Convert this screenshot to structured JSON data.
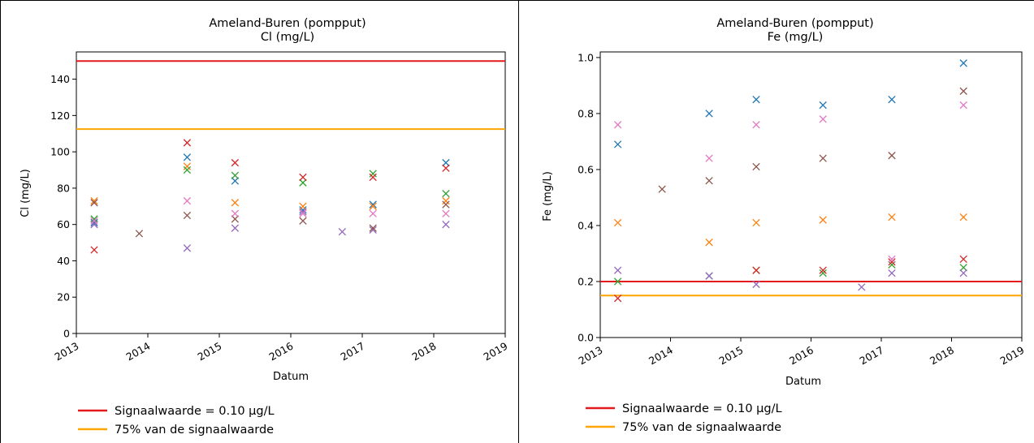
{
  "chart_data": [
    {
      "type": "scatter",
      "title": "Ameland-Buren (pompput)",
      "subtitle": "Cl (mg/L)",
      "xlabel": "Datum",
      "ylabel": "Cl (mg/L)",
      "xlim": [
        2013,
        2019
      ],
      "ylim": [
        0,
        155
      ],
      "xticks": [
        "2013",
        "2014",
        "2015",
        "2016",
        "2017",
        "2018",
        "2019"
      ],
      "yticks": [
        0,
        20,
        40,
        60,
        80,
        100,
        120,
        140
      ],
      "grid": false,
      "legend_position": "below plot",
      "hlines": [
        {
          "name": "Signaalwaarde = 0.10 µg/L",
          "value": 150,
          "color": "#e31a1c"
        },
        {
          "name": "75% van de signaalwaarde",
          "value": 112.5,
          "color": "#ffa500"
        }
      ],
      "series": [
        {
          "color": "#1f77b4",
          "points": [
            [
              2013.25,
              61
            ],
            [
              2014.55,
              97
            ],
            [
              2015.22,
              84
            ],
            [
              2016.17,
              68
            ],
            [
              2017.15,
              71
            ],
            [
              2018.17,
              94
            ]
          ]
        },
        {
          "color": "#ff7f0e",
          "points": [
            [
              2013.25,
              73
            ],
            [
              2014.55,
              92
            ],
            [
              2015.22,
              72
            ],
            [
              2016.17,
              70
            ],
            [
              2017.15,
              70
            ],
            [
              2018.17,
              73
            ]
          ]
        },
        {
          "color": "#2ca02c",
          "points": [
            [
              2013.25,
              63
            ],
            [
              2014.55,
              90
            ],
            [
              2015.22,
              87
            ],
            [
              2016.17,
              83
            ],
            [
              2017.15,
              88
            ],
            [
              2018.17,
              77
            ]
          ]
        },
        {
          "color": "#d62728",
          "points": [
            [
              2013.25,
              46
            ],
            [
              2014.55,
              105
            ],
            [
              2015.22,
              94
            ],
            [
              2016.17,
              86
            ],
            [
              2017.15,
              86
            ],
            [
              2018.17,
              91
            ]
          ]
        },
        {
          "color": "#9467bd",
          "points": [
            [
              2013.25,
              60
            ],
            [
              2014.55,
              47
            ],
            [
              2015.22,
              58
            ],
            [
              2016.17,
              67
            ],
            [
              2016.72,
              56
            ],
            [
              2017.15,
              57
            ],
            [
              2018.17,
              60
            ]
          ]
        },
        {
          "color": "#8c564b",
          "points": [
            [
              2013.25,
              72
            ],
            [
              2013.88,
              55
            ],
            [
              2014.55,
              65
            ],
            [
              2015.22,
              63
            ],
            [
              2016.17,
              62
            ],
            [
              2017.15,
              58
            ],
            [
              2018.17,
              71
            ]
          ]
        },
        {
          "color": "#e377c2",
          "points": [
            [
              2013.25,
              62
            ],
            [
              2014.55,
              73
            ],
            [
              2015.22,
              66
            ],
            [
              2016.17,
              66
            ],
            [
              2017.15,
              66
            ],
            [
              2018.17,
              66
            ]
          ]
        }
      ]
    },
    {
      "type": "scatter",
      "title": "Ameland-Buren (pompput)",
      "subtitle": "Fe (mg/L)",
      "xlabel": "Datum",
      "ylabel": "Fe (mg/L)",
      "xlim": [
        2013,
        2019
      ],
      "ylim": [
        0,
        1.02
      ],
      "xticks": [
        "2013",
        "2014",
        "2015",
        "2016",
        "2017",
        "2018",
        "2019"
      ],
      "yticks": [
        "0.0",
        "0.2",
        "0.4",
        "0.6",
        "0.8",
        "1.0"
      ],
      "grid": false,
      "legend_position": "below plot",
      "hlines": [
        {
          "name": "Signaalwaarde = 0.10 µg/L",
          "value": 0.2,
          "color": "#e31a1c"
        },
        {
          "name": "75% van de signaalwaarde",
          "value": 0.15,
          "color": "#ffa500"
        }
      ],
      "series": [
        {
          "color": "#1f77b4",
          "points": [
            [
              2013.25,
              0.69
            ],
            [
              2014.55,
              0.8
            ],
            [
              2015.22,
              0.85
            ],
            [
              2016.17,
              0.83
            ],
            [
              2017.15,
              0.85
            ],
            [
              2018.17,
              0.98
            ]
          ]
        },
        {
          "color": "#ff7f0e",
          "points": [
            [
              2013.25,
              0.41
            ],
            [
              2014.55,
              0.34
            ],
            [
              2015.22,
              0.41
            ],
            [
              2016.17,
              0.42
            ],
            [
              2017.15,
              0.43
            ],
            [
              2018.17,
              0.43
            ]
          ]
        },
        {
          "color": "#2ca02c",
          "points": [
            [
              2013.25,
              0.2
            ],
            [
              2014.55,
              0.22
            ],
            [
              2015.22,
              0.24
            ],
            [
              2016.17,
              0.23
            ],
            [
              2017.15,
              0.26
            ],
            [
              2018.17,
              0.25
            ]
          ]
        },
        {
          "color": "#d62728",
          "points": [
            [
              2013.25,
              0.14
            ],
            [
              2015.22,
              0.24
            ],
            [
              2016.17,
              0.24
            ],
            [
              2017.15,
              0.27
            ],
            [
              2018.17,
              0.28
            ]
          ]
        },
        {
          "color": "#9467bd",
          "points": [
            [
              2013.25,
              0.24
            ],
            [
              2014.55,
              0.22
            ],
            [
              2015.22,
              0.19
            ],
            [
              2016.72,
              0.18
            ],
            [
              2017.15,
              0.23
            ],
            [
              2018.17,
              0.23
            ]
          ]
        },
        {
          "color": "#8c564b",
          "points": [
            [
              2013.88,
              0.53
            ],
            [
              2014.55,
              0.56
            ],
            [
              2015.22,
              0.61
            ],
            [
              2016.17,
              0.64
            ],
            [
              2017.15,
              0.65
            ],
            [
              2018.17,
              0.88
            ]
          ]
        },
        {
          "color": "#e377c2",
          "points": [
            [
              2013.25,
              0.76
            ],
            [
              2014.55,
              0.64
            ],
            [
              2015.22,
              0.76
            ],
            [
              2016.17,
              0.78
            ],
            [
              2017.15,
              0.28
            ],
            [
              2018.17,
              0.83
            ]
          ]
        }
      ]
    }
  ]
}
